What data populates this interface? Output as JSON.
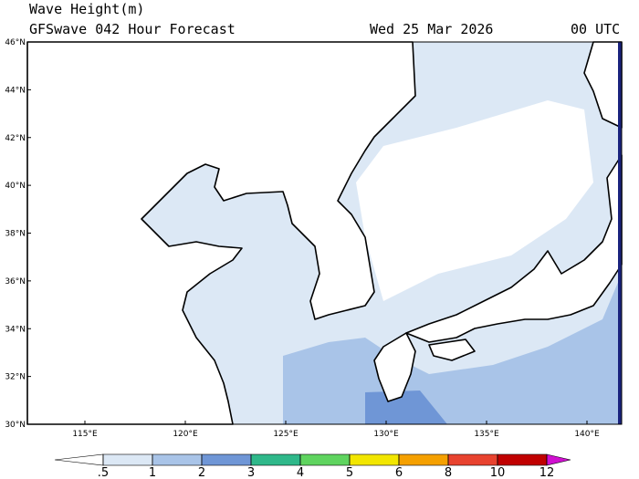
{
  "header": {
    "title": "Wave Height(m)",
    "subtitle": "GFSwave 042 Hour Forecast",
    "date": "Wed 25 Mar 2026",
    "time": "00 UTC"
  },
  "map": {
    "lat_labels": [
      "46°N",
      "44°N",
      "42°N",
      "40°N",
      "38°N",
      "36°N",
      "34°N",
      "32°N",
      "30°N"
    ],
    "lon_labels": [
      "115°E",
      "120°E",
      "125°E",
      "130°E",
      "135°E",
      "140°E"
    ]
  },
  "colorbar": {
    "ticks": [
      {
        "value": 0.5,
        "label": ".5"
      },
      1,
      2,
      3,
      4,
      5,
      6,
      8,
      10,
      12
    ],
    "colors": [
      "#ffffff",
      "#dce8f5",
      "#a9c4e8",
      "#6f96d6",
      "#2fb88a",
      "#5fd45f",
      "#f2e600",
      "#f5a000",
      "#e8432f",
      "#c00000",
      "#d010d0"
    ]
  }
}
